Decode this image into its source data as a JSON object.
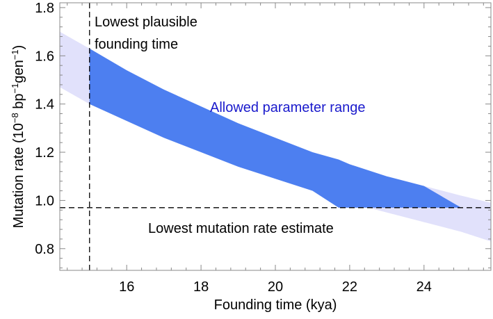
{
  "chart_data": {
    "type": "area",
    "xlabel": "Founding time (kya)",
    "ylabel": {
      "prefix": "Mutation rate (10",
      "exp1": "−8",
      "mid1": " bp",
      "exp2": "−1",
      "mid2": "gen",
      "exp3": "−1",
      "suffix": ")"
    },
    "xlim": [
      14.2,
      25.8
    ],
    "ylim": [
      0.71,
      1.82
    ],
    "xticks": [
      16,
      18,
      20,
      22,
      24
    ],
    "yticks": [
      0.8,
      1.0,
      1.2,
      1.4,
      1.6,
      1.8
    ],
    "ytick_labels": [
      "0.8",
      "1.0",
      "1.2",
      "1.4",
      "1.6",
      "1.8"
    ],
    "grid": false,
    "series": [
      {
        "role": "plausible band",
        "color": "#e1e1fb",
        "x": [
          14.2,
          15,
          16,
          17,
          18,
          19,
          20,
          21,
          22,
          23,
          24,
          25,
          25.8
        ],
        "y_upper": [
          1.7,
          1.63,
          1.54,
          1.46,
          1.39,
          1.32,
          1.26,
          1.2,
          1.15,
          1.1,
          1.06,
          1.02,
          0.99
        ],
        "y_lower": [
          1.47,
          1.4,
          1.33,
          1.26,
          1.2,
          1.14,
          1.09,
          1.04,
          0.99,
          0.95,
          0.91,
          0.87,
          0.83
        ]
      },
      {
        "role": "allowed band",
        "color": "#4d7ff0",
        "x": [
          15,
          16,
          17,
          18,
          19,
          20,
          21,
          21.7,
          22,
          23,
          24,
          25
        ],
        "y_upper": [
          1.63,
          1.54,
          1.46,
          1.39,
          1.32,
          1.26,
          1.2,
          1.17,
          1.15,
          1.1,
          1.06,
          0.97
        ],
        "y_lower": [
          1.4,
          1.33,
          1.26,
          1.2,
          1.14,
          1.09,
          1.04,
          0.97,
          0.97,
          0.97,
          0.97,
          0.97
        ]
      }
    ],
    "reference_lines": [
      {
        "orientation": "vertical",
        "value": 15,
        "style": "dashed"
      },
      {
        "orientation": "horizontal",
        "value": 0.97,
        "style": "dashed"
      }
    ],
    "annotations": {
      "founding_line1": "Lowest plausible",
      "founding_line2": "founding time",
      "allowed": "Allowed parameter range",
      "mutation": "Lowest mutation rate estimate"
    },
    "colors": {
      "allowed_text": "#1a1acc"
    }
  }
}
